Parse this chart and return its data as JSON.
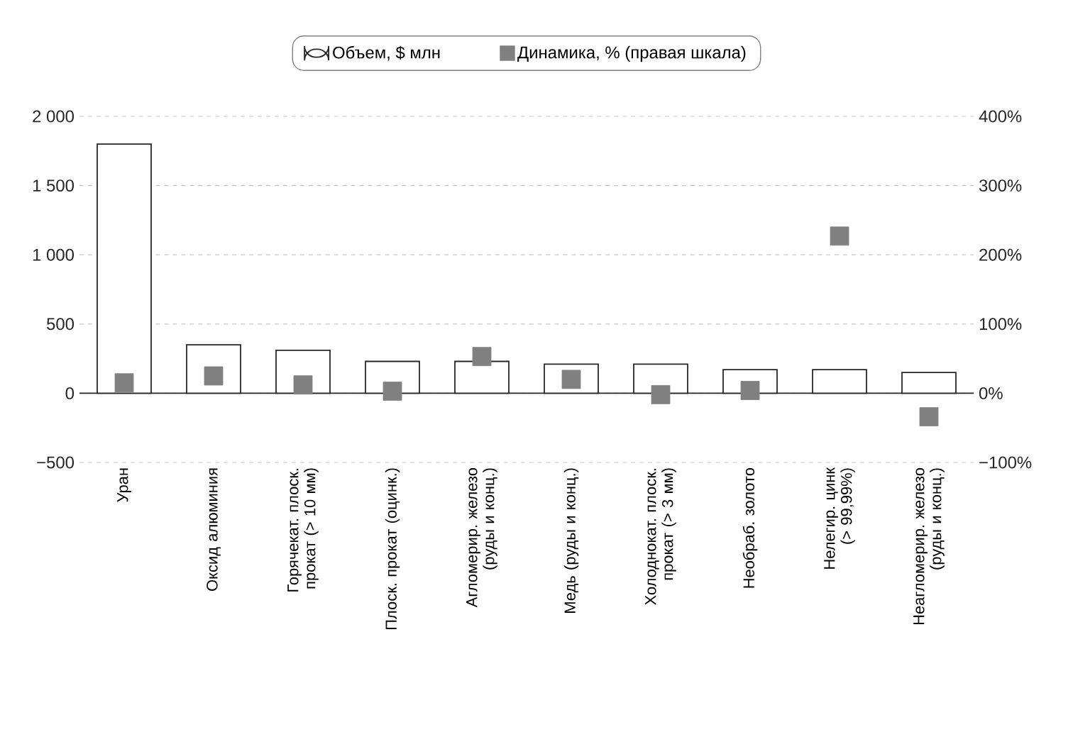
{
  "chart_data": {
    "type": "bar",
    "categories": [
      "Уран",
      "Оксид алюминия",
      "Горячекат. плоск. прокат (> 10 мм)",
      "Плоск. прокат (оцинк.)",
      "Агломерир. железо (руды и конц.)",
      "Медь (руды и конц.)",
      "Холоднокат. плоск. прокат (> 3 мм)",
      "Необраб. золото",
      "Нелегир. цинк (> 99,99%)",
      "Неагломерир. железо (руды и конц.)"
    ],
    "series": [
      {
        "name": "Объем, $ млн",
        "color": "#ffffff",
        "values": [
          1800,
          350,
          310,
          230,
          230,
          210,
          210,
          170,
          170,
          150
        ]
      },
      {
        "name": "Динамика, % (правая шкала)",
        "type": "scatter",
        "axis": "y2",
        "marker": "square",
        "color": "#808080",
        "values": [
          15,
          25,
          12,
          3,
          53,
          20,
          -2,
          4,
          227,
          -34
        ]
      }
    ],
    "ylim": [
      -500,
      2000
    ],
    "yticks": [
      {
        "value": -500,
        "label": "−500"
      },
      0,
      500,
      {
        "value": 1000,
        "label": "1 000"
      },
      {
        "value": 1500,
        "label": "1 500"
      },
      {
        "value": 2000,
        "label": "2 000"
      }
    ],
    "y2lim": [
      -100,
      400
    ],
    "y2ticks": [
      {
        "value": -100,
        "label": "−100%"
      },
      {
        "value": 0,
        "label": "0%"
      },
      {
        "value": 100,
        "label": "100%"
      },
      {
        "value": 200,
        "label": "200%"
      },
      {
        "value": 300,
        "label": "300%"
      },
      {
        "value": 400,
        "label": "400%"
      }
    ],
    "grid": "y",
    "legend": "top"
  }
}
